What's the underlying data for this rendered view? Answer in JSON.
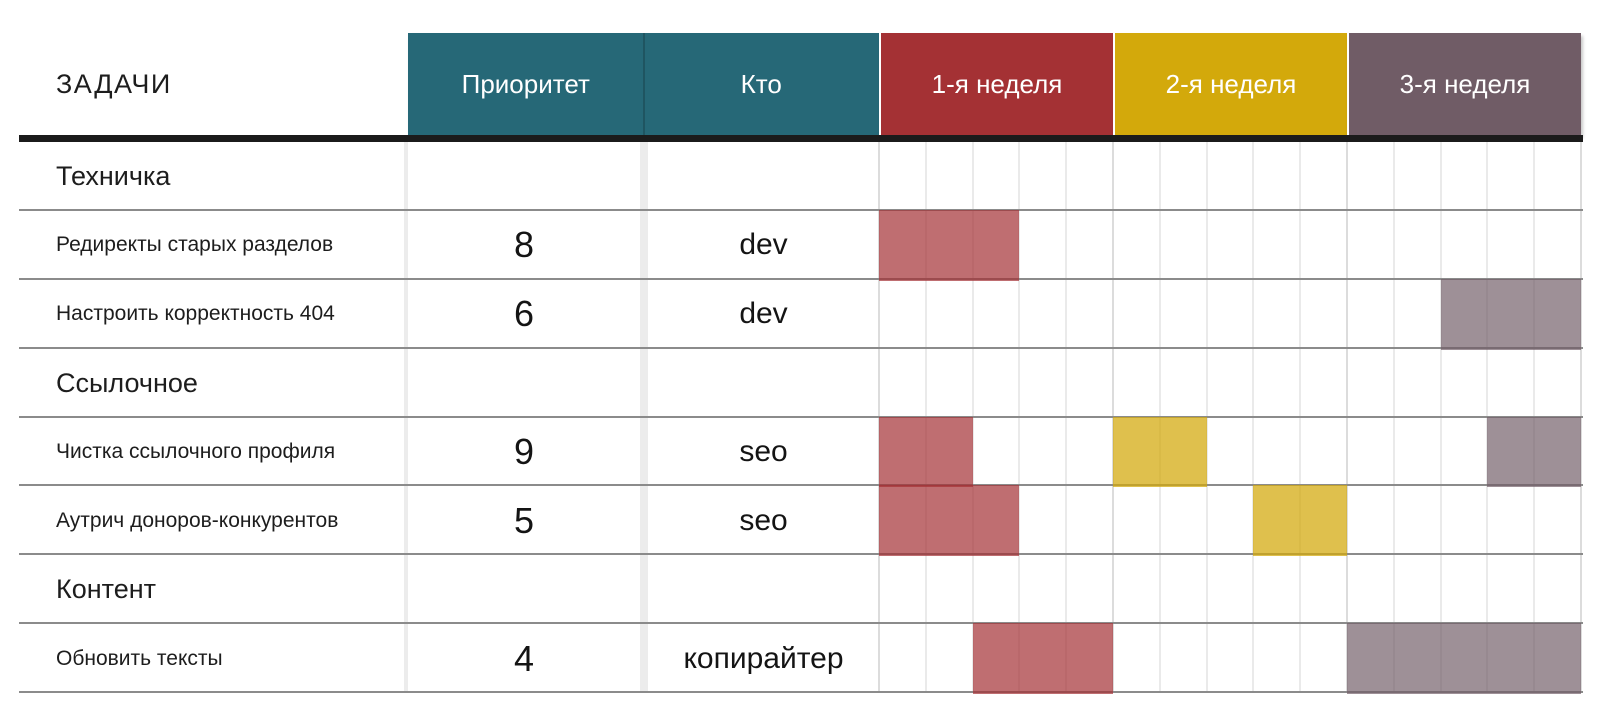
{
  "colors": {
    "header_teal": "#266877",
    "header_red": "#a43134",
    "header_yellow": "#d3a90b",
    "header_purple": "#705c66",
    "bar_red": "rgba(164,49,52,0.70)",
    "bar_yellow": "rgba(211,169,11,0.73)",
    "bar_purple": "rgba(112,92,102,0.68)",
    "header_text": "#ffffff",
    "text": "#1d1d1d",
    "row_line": "#8b8b8b",
    "day_line": "#eaeaea",
    "week_line": "#dcdcdc",
    "column_band": "#ececec",
    "header_underline": "#1b1b1b"
  },
  "chart_data": {
    "type": "gantt",
    "title": "ЗАДАЧИ",
    "tasks_header": "ЗАДАЧИ",
    "columns": [
      {
        "label": "Приоритет"
      },
      {
        "label": "Кто"
      }
    ],
    "weeks": [
      "1-я неделя",
      "2-я неделя",
      "3-я неделя"
    ],
    "days_per_week": 5,
    "grid": "on",
    "rows": [
      {
        "type": "section",
        "label": "Техничка"
      },
      {
        "type": "task",
        "label": "Редиректы старых разделов",
        "priority": "8",
        "who": "dev",
        "bars": [
          {
            "week": 1,
            "day_start": 1,
            "day_end": 3,
            "color": "red"
          }
        ]
      },
      {
        "type": "task",
        "label": "Настроить корректность 404",
        "priority": "6",
        "who": "dev",
        "bars": [
          {
            "week": 3,
            "day_start": 3,
            "day_end": 5,
            "color": "purple"
          }
        ]
      },
      {
        "type": "section",
        "label": "Ссылочное"
      },
      {
        "type": "task",
        "label": "Чистка ссылочного профиля",
        "priority": "9",
        "who": "seo",
        "bars": [
          {
            "week": 1,
            "day_start": 1,
            "day_end": 2,
            "color": "red"
          },
          {
            "week": 2,
            "day_start": 1,
            "day_end": 2,
            "color": "yellow"
          },
          {
            "week": 3,
            "day_start": 4,
            "day_end": 5,
            "color": "purple"
          }
        ]
      },
      {
        "type": "task",
        "label": "Аутрич доноров-конкурентов",
        "priority": "5",
        "who": "seo",
        "bars": [
          {
            "week": 1,
            "day_start": 1,
            "day_end": 3,
            "color": "red"
          },
          {
            "week": 2,
            "day_start": 4,
            "day_end": 5,
            "color": "yellow"
          }
        ]
      },
      {
        "type": "section",
        "label": "Контент"
      },
      {
        "type": "task",
        "label": "Обновить тексты",
        "priority": "4",
        "who": "копирайтер",
        "bars": [
          {
            "week": 1,
            "day_start": 3,
            "day_end": 5,
            "color": "red"
          },
          {
            "week": 3,
            "day_start": 1,
            "day_end": 5,
            "color": "purple"
          }
        ]
      }
    ]
  }
}
